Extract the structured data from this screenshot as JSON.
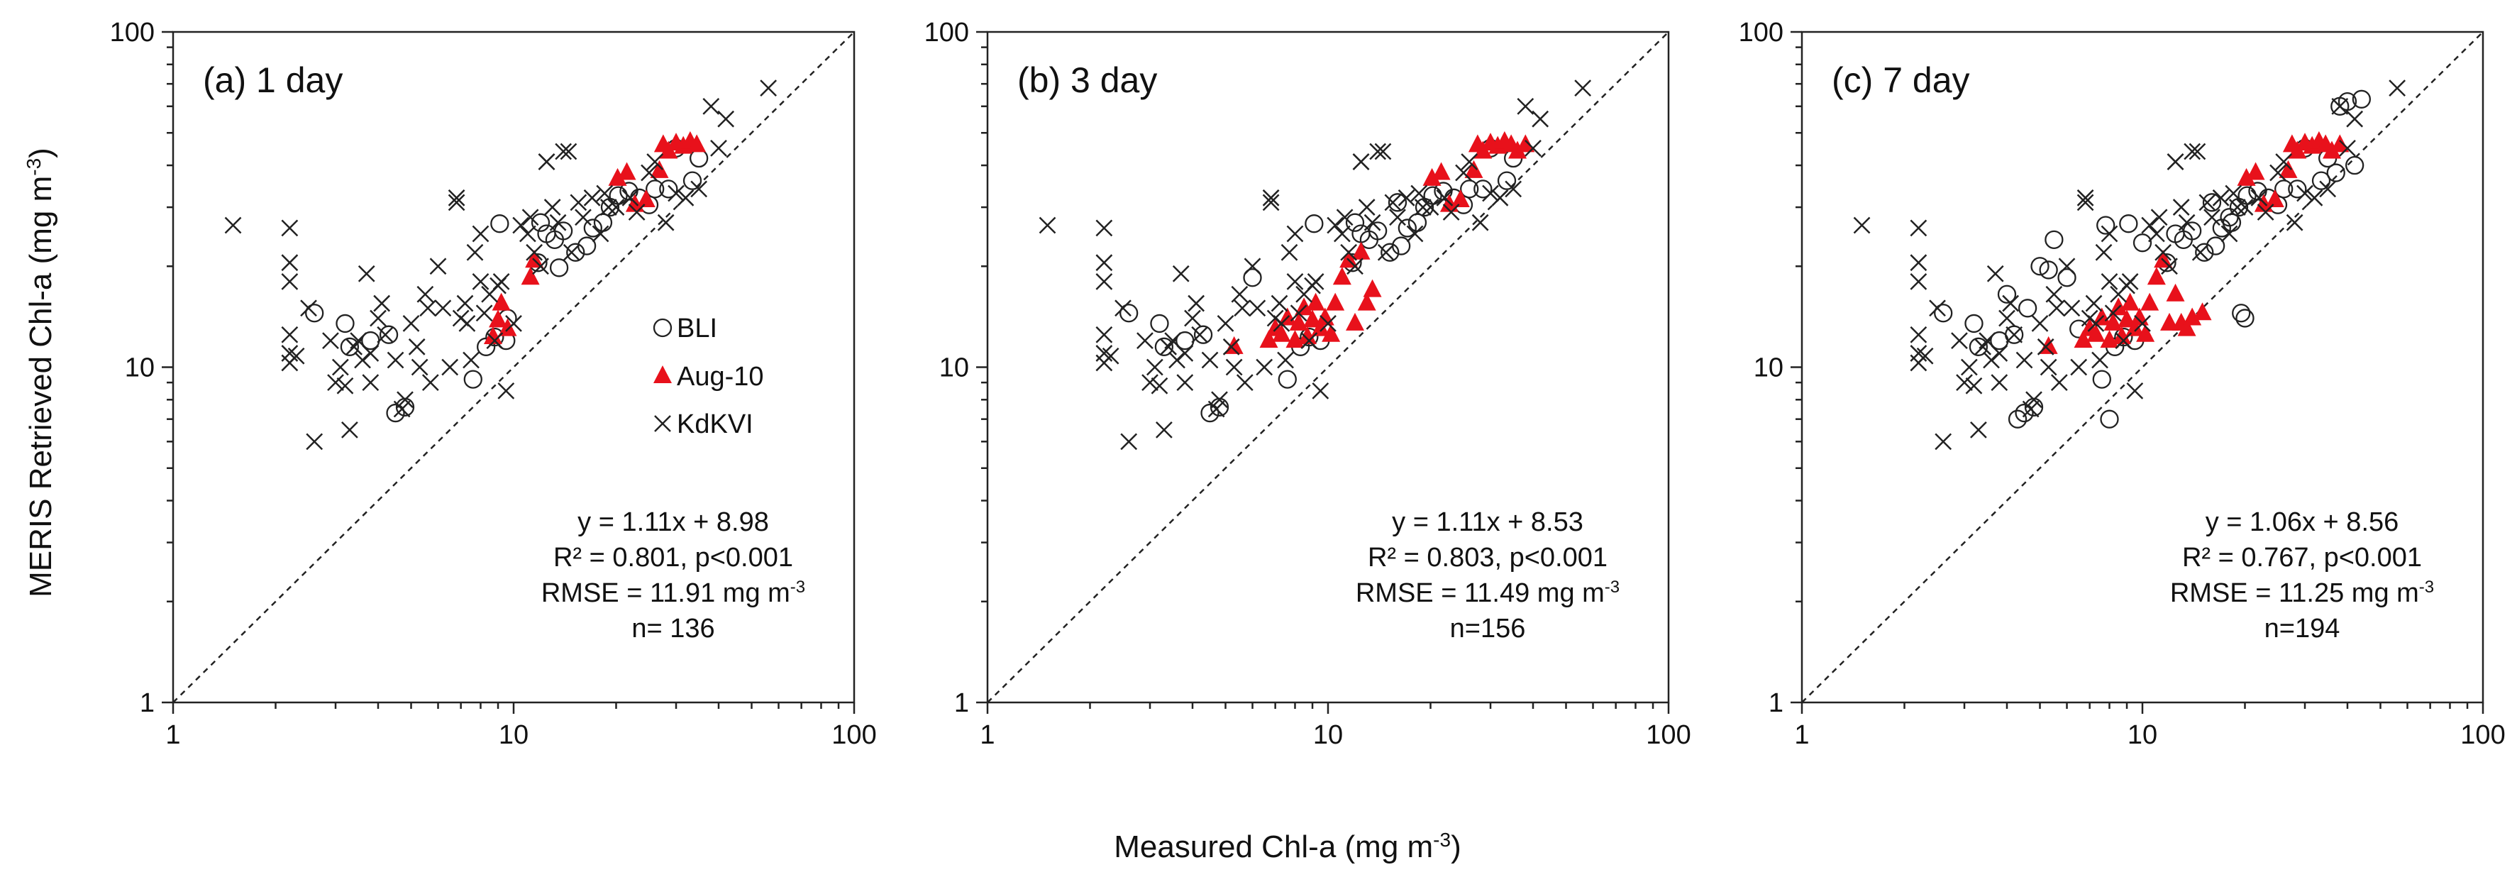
{
  "figure": {
    "ylabel": "MERIS Retrieved Chl-a (mg m",
    "ylabel_sup": "-3",
    "ylabel_end": ")",
    "xlabel": "Measured Chl-a (mg m",
    "xlabel_sup": "-3",
    "xlabel_end": ")"
  },
  "chart_data": [
    {
      "type": "scatter",
      "title": "(a) 1 day",
      "xscale": "log",
      "yscale": "log",
      "xlim": [
        1,
        100
      ],
      "ylim": [
        1,
        100
      ],
      "xticks": [
        "1",
        "10",
        "100"
      ],
      "yticks": [
        "1",
        "10",
        "100"
      ],
      "reference_line": "1:1",
      "legend": {
        "placement": "center-right",
        "entries": [
          "BLI",
          "Aug-10",
          "KdKVI"
        ]
      },
      "stats": {
        "eq": "y = 1.11x + 8.98",
        "r2": "R² = 0.801, p<0.001",
        "rmse": "RMSE = 11.91 mg m",
        "rmse_sup": "-3",
        "n": "n= 136"
      },
      "series": [
        {
          "name": "BLI",
          "marker": "circle",
          "x": [
            2.6,
            3.2,
            3.3,
            3.8,
            4.3,
            4.5,
            4.8,
            7.6,
            8.3,
            8.8,
            9.1,
            9.5,
            11.8,
            12.5,
            13.2,
            13.6,
            14.0,
            15.2,
            16.4,
            17.1,
            18.3,
            19.2,
            20.3,
            21.8,
            23.4,
            25.0,
            28.5,
            30.0,
            33.5,
            35.0,
            9.6,
            12.0,
            26.0
          ],
          "y": [
            14.5,
            13.5,
            11.5,
            12.0,
            12.5,
            7.3,
            7.6,
            9.2,
            11.5,
            12.3,
            26.8,
            12.0,
            20.5,
            25.0,
            24.0,
            19.8,
            25.5,
            22.0,
            23.0,
            26.0,
            27.0,
            30.0,
            32.5,
            33.5,
            32.0,
            30.5,
            34.0,
            45.0,
            36.0,
            42.0,
            14.0,
            27.0,
            34.0
          ]
        },
        {
          "name": "Aug-10",
          "marker": "triangle",
          "color": "#e8111b",
          "x": [
            8.7,
            9.0,
            9.2,
            9.6,
            11.2,
            11.5,
            20.2,
            21.5,
            22.7,
            24.5,
            26.8,
            27.5,
            28.5,
            30.0,
            31.5,
            33.0,
            34.5
          ],
          "y": [
            12.3,
            13.8,
            15.5,
            13.0,
            18.5,
            20.8,
            36.5,
            38.0,
            30.5,
            31.5,
            38.5,
            46.0,
            44.0,
            46.5,
            45.5,
            47.0,
            46.0
          ]
        },
        {
          "name": "KdKVI",
          "marker": "x",
          "x": [
            1.5,
            2.2,
            2.2,
            2.2,
            2.2,
            2.2,
            2.2,
            2.3,
            2.5,
            2.6,
            2.9,
            3.0,
            3.1,
            3.2,
            3.3,
            3.4,
            3.5,
            3.6,
            3.7,
            3.8,
            3.8,
            4.0,
            4.1,
            4.2,
            4.5,
            4.7,
            4.8,
            5.0,
            5.2,
            5.3,
            5.5,
            5.6,
            5.7,
            6.0,
            6.2,
            6.5,
            6.8,
            6.8,
            7.0,
            7.2,
            7.3,
            7.5,
            7.7,
            8.0,
            8.0,
            8.2,
            8.5,
            8.8,
            9.0,
            9.2,
            9.5,
            10.0,
            10.5,
            11.0,
            11.2,
            11.5,
            12.0,
            12.5,
            13.0,
            13.5,
            14.0,
            14.8,
            15.5,
            16.0,
            17.0,
            18.0,
            18.5,
            19.0,
            20.0,
            22.0,
            23.0,
            25.0,
            26.0,
            28.0,
            30.0,
            32.0,
            35.0,
            38.0,
            40.0,
            42.0,
            56.0,
            12.5,
            14.5
          ],
          "y": [
            26.5,
            26.0,
            20.5,
            18.0,
            12.5,
            11.0,
            10.3,
            10.8,
            15.0,
            6.0,
            12.0,
            9.0,
            10.0,
            8.8,
            6.5,
            11.5,
            12.0,
            10.5,
            19.0,
            11.0,
            9.0,
            14.0,
            15.5,
            12.5,
            10.5,
            7.5,
            8.0,
            13.5,
            11.5,
            10.0,
            16.5,
            15.0,
            9.0,
            20.0,
            15.0,
            10.0,
            32.0,
            31.0,
            14.0,
            15.5,
            13.5,
            10.5,
            22.0,
            25.0,
            18.0,
            14.5,
            16.5,
            12.0,
            17.5,
            18.0,
            8.5,
            13.5,
            26.5,
            25.0,
            28.0,
            22.0,
            20.0,
            41.0,
            30.0,
            27.0,
            44.0,
            22.0,
            31.0,
            28.0,
            32.0,
            25.0,
            33.0,
            30.0,
            30.0,
            32.0,
            29.0,
            38.0,
            41.0,
            27.0,
            33.0,
            32.0,
            34.0,
            60.0,
            45.0,
            55.0,
            68.0,
            41.0,
            44.0
          ]
        }
      ]
    },
    {
      "type": "scatter",
      "title": "(b) 3 day",
      "xscale": "log",
      "yscale": "log",
      "xlim": [
        1,
        100
      ],
      "ylim": [
        1,
        100
      ],
      "xticks": [
        "1",
        "10",
        "100"
      ],
      "yticks": [
        "1",
        "10",
        "100"
      ],
      "reference_line": "1:1",
      "stats": {
        "eq": "y = 1.11x + 8.53",
        "r2": "R² = 0.803, p<0.001",
        "rmse": "RMSE = 11.49 mg m",
        "rmse_sup": "-3",
        "n": "n=156"
      },
      "series": [
        {
          "name": "BLI",
          "marker": "circle",
          "x": [
            2.6,
            3.2,
            3.3,
            3.8,
            4.3,
            4.5,
            4.8,
            6.0,
            7.6,
            8.3,
            8.8,
            9.1,
            9.5,
            11.8,
            12.5,
            13.2,
            14.0,
            15.2,
            16.4,
            17.1,
            18.3,
            19.2,
            20.3,
            21.8,
            23.4,
            25.0,
            28.5,
            30.0,
            33.5,
            35.0,
            12.0,
            26.0,
            16.0
          ],
          "y": [
            14.5,
            13.5,
            11.5,
            12.0,
            12.5,
            7.3,
            7.6,
            18.5,
            9.2,
            11.5,
            12.3,
            26.8,
            12.0,
            20.5,
            25.0,
            24.0,
            25.5,
            22.0,
            23.0,
            26.0,
            27.0,
            30.0,
            32.5,
            33.5,
            32.0,
            30.5,
            34.0,
            45.0,
            36.0,
            42.0,
            27.0,
            34.0,
            31.0
          ]
        },
        {
          "name": "Aug-10",
          "marker": "triangle",
          "color": "#e8111b",
          "x": [
            5.3,
            6.7,
            7.0,
            7.3,
            7.6,
            8.0,
            8.2,
            8.5,
            8.7,
            9.0,
            9.2,
            9.5,
            9.8,
            10.2,
            10.5,
            11.0,
            11.5,
            12.0,
            12.5,
            13.0,
            13.5,
            20.2,
            21.5,
            22.7,
            24.5,
            26.8,
            27.5,
            28.5,
            30.0,
            31.5,
            33.0,
            34.5,
            36.0,
            38.0
          ],
          "y": [
            11.5,
            12.0,
            13.0,
            12.5,
            14.0,
            12.0,
            13.5,
            15.0,
            12.3,
            13.8,
            15.5,
            13.0,
            14.0,
            12.5,
            15.5,
            18.5,
            20.8,
            13.5,
            22.0,
            15.5,
            17.0,
            36.5,
            38.0,
            30.5,
            31.5,
            38.5,
            46.0,
            44.0,
            46.5,
            45.5,
            47.0,
            46.0,
            44.0,
            46.0
          ]
        },
        {
          "name": "KdKVI",
          "marker": "x",
          "x": [
            1.5,
            2.2,
            2.2,
            2.2,
            2.2,
            2.2,
            2.2,
            2.3,
            2.5,
            2.6,
            2.9,
            3.0,
            3.1,
            3.2,
            3.3,
            3.4,
            3.5,
            3.6,
            3.7,
            3.8,
            3.8,
            4.0,
            4.1,
            4.2,
            4.5,
            4.7,
            4.8,
            5.0,
            5.2,
            5.3,
            5.5,
            5.6,
            5.7,
            6.0,
            6.2,
            6.5,
            6.8,
            6.8,
            7.0,
            7.2,
            7.3,
            7.5,
            7.7,
            8.0,
            8.0,
            8.2,
            8.5,
            8.8,
            9.0,
            9.2,
            9.5,
            10.0,
            10.5,
            11.0,
            11.2,
            11.5,
            12.0,
            12.5,
            13.0,
            13.5,
            14.0,
            14.8,
            15.5,
            16.0,
            17.0,
            18.0,
            18.5,
            19.0,
            20.0,
            22.0,
            23.0,
            25.0,
            26.0,
            28.0,
            30.0,
            32.0,
            35.0,
            38.0,
            40.0,
            42.0,
            56.0,
            12.5,
            14.5
          ],
          "y": [
            26.5,
            26.0,
            20.5,
            18.0,
            12.5,
            11.0,
            10.3,
            10.8,
            15.0,
            6.0,
            12.0,
            9.0,
            10.0,
            8.8,
            6.5,
            11.5,
            12.0,
            10.5,
            19.0,
            11.0,
            9.0,
            14.0,
            15.5,
            12.5,
            10.5,
            7.5,
            8.0,
            13.5,
            11.5,
            10.0,
            16.5,
            15.0,
            9.0,
            20.0,
            15.0,
            10.0,
            32.0,
            31.0,
            14.0,
            15.5,
            13.5,
            10.5,
            22.0,
            25.0,
            18.0,
            14.5,
            16.5,
            12.0,
            17.5,
            18.0,
            8.5,
            13.5,
            26.5,
            25.0,
            28.0,
            22.0,
            20.0,
            41.0,
            30.0,
            27.0,
            44.0,
            22.0,
            31.0,
            28.0,
            32.0,
            25.0,
            33.0,
            30.0,
            30.0,
            32.0,
            29.0,
            38.0,
            41.0,
            27.0,
            33.0,
            32.0,
            34.0,
            60.0,
            45.0,
            55.0,
            68.0,
            41.0,
            44.0
          ]
        }
      ]
    },
    {
      "type": "scatter",
      "title": "(c) 7 day",
      "xscale": "log",
      "yscale": "log",
      "xlim": [
        1,
        100
      ],
      "ylim": [
        1,
        100
      ],
      "xticks": [
        "1",
        "10",
        "100"
      ],
      "yticks": [
        "1",
        "10",
        "100"
      ],
      "reference_line": "1:1",
      "stats": {
        "eq": "y = 1.06x + 8.56",
        "r2": "R² = 0.767, p<0.001",
        "rmse": "RMSE = 11.25 mg m",
        "rmse_sup": "-3",
        "n": "n=194"
      },
      "series": [
        {
          "name": "BLI",
          "marker": "circle",
          "x": [
            2.6,
            3.2,
            3.3,
            3.8,
            4.0,
            4.2,
            4.3,
            4.5,
            4.6,
            4.8,
            5.0,
            5.3,
            5.5,
            6.0,
            6.5,
            7.6,
            7.8,
            8.0,
            8.3,
            8.8,
            9.1,
            9.5,
            10.0,
            11.8,
            12.5,
            13.2,
            14.0,
            15.2,
            16.4,
            17.1,
            18.3,
            19.2,
            19.5,
            20.0,
            20.3,
            21.8,
            23.4,
            25.0,
            28.5,
            30.0,
            33.5,
            35.0,
            37.0,
            38.0,
            40.0,
            42.0,
            44.0,
            16.0,
            18.0,
            26.0
          ],
          "y": [
            14.5,
            13.5,
            11.5,
            12.0,
            16.5,
            12.5,
            7.0,
            7.3,
            15.0,
            7.6,
            20.0,
            19.5,
            24.0,
            18.5,
            13.0,
            9.2,
            26.5,
            7.0,
            11.5,
            12.3,
            26.8,
            12.0,
            23.5,
            20.5,
            25.0,
            24.0,
            25.5,
            22.0,
            23.0,
            26.0,
            27.0,
            30.0,
            14.5,
            14.0,
            32.5,
            33.5,
            32.0,
            30.5,
            34.0,
            45.0,
            36.0,
            42.0,
            38.0,
            60.0,
            62.0,
            40.0,
            63.0,
            31.0,
            28.0,
            34.0
          ]
        },
        {
          "name": "Aug-10",
          "marker": "triangle",
          "color": "#e8111b",
          "x": [
            5.3,
            6.7,
            7.0,
            7.3,
            7.6,
            8.0,
            8.2,
            8.5,
            8.7,
            9.0,
            9.2,
            9.5,
            9.8,
            10.2,
            10.5,
            11.0,
            11.5,
            12.0,
            12.5,
            13.0,
            13.5,
            14.0,
            15.0,
            20.2,
            21.5,
            22.7,
            24.5,
            26.8,
            27.5,
            28.5,
            30.0,
            31.5,
            33.0,
            34.5,
            36.0,
            38.0
          ],
          "y": [
            11.5,
            12.0,
            13.0,
            12.5,
            14.0,
            12.0,
            13.5,
            15.0,
            12.3,
            13.8,
            15.5,
            13.0,
            14.0,
            12.5,
            15.5,
            18.5,
            20.8,
            13.5,
            16.5,
            13.5,
            13.0,
            14.0,
            14.5,
            36.5,
            38.0,
            30.5,
            31.5,
            38.5,
            46.0,
            44.0,
            46.5,
            45.5,
            47.0,
            46.0,
            44.0,
            46.0
          ]
        },
        {
          "name": "KdKVI",
          "marker": "x",
          "x": [
            1.5,
            2.2,
            2.2,
            2.2,
            2.2,
            2.2,
            2.2,
            2.3,
            2.5,
            2.6,
            2.9,
            3.0,
            3.1,
            3.2,
            3.3,
            3.4,
            3.5,
            3.6,
            3.7,
            3.8,
            3.8,
            4.0,
            4.1,
            4.2,
            4.5,
            4.7,
            4.8,
            5.0,
            5.2,
            5.3,
            5.5,
            5.6,
            5.7,
            6.0,
            6.2,
            6.5,
            6.8,
            6.8,
            7.0,
            7.2,
            7.3,
            7.5,
            7.7,
            8.0,
            8.0,
            8.2,
            8.5,
            8.8,
            9.0,
            9.2,
            9.5,
            10.0,
            10.5,
            11.0,
            11.2,
            11.5,
            12.0,
            12.5,
            13.0,
            13.5,
            14.0,
            14.8,
            15.5,
            16.0,
            17.0,
            18.0,
            18.5,
            19.0,
            20.0,
            22.0,
            23.0,
            25.0,
            26.0,
            28.0,
            30.0,
            32.0,
            35.0,
            38.0,
            40.0,
            42.0,
            56.0,
            12.5,
            14.5
          ],
          "y": [
            26.5,
            26.0,
            20.5,
            18.0,
            12.5,
            11.0,
            10.3,
            10.8,
            15.0,
            6.0,
            12.0,
            9.0,
            10.0,
            8.8,
            6.5,
            11.5,
            12.0,
            10.5,
            19.0,
            11.0,
            9.0,
            14.0,
            15.5,
            12.5,
            10.5,
            7.5,
            8.0,
            13.5,
            11.5,
            10.0,
            16.5,
            15.0,
            9.0,
            20.0,
            15.0,
            10.0,
            32.0,
            31.0,
            14.0,
            15.5,
            13.5,
            10.5,
            22.0,
            25.0,
            18.0,
            14.5,
            16.5,
            12.0,
            17.5,
            18.0,
            8.5,
            13.5,
            26.5,
            25.0,
            28.0,
            22.0,
            20.0,
            41.0,
            30.0,
            27.0,
            44.0,
            22.0,
            31.0,
            28.0,
            32.0,
            25.0,
            33.0,
            30.0,
            30.0,
            32.0,
            29.0,
            38.0,
            41.0,
            27.0,
            33.0,
            32.0,
            34.0,
            60.0,
            45.0,
            55.0,
            68.0,
            41.0,
            44.0
          ]
        }
      ]
    }
  ]
}
